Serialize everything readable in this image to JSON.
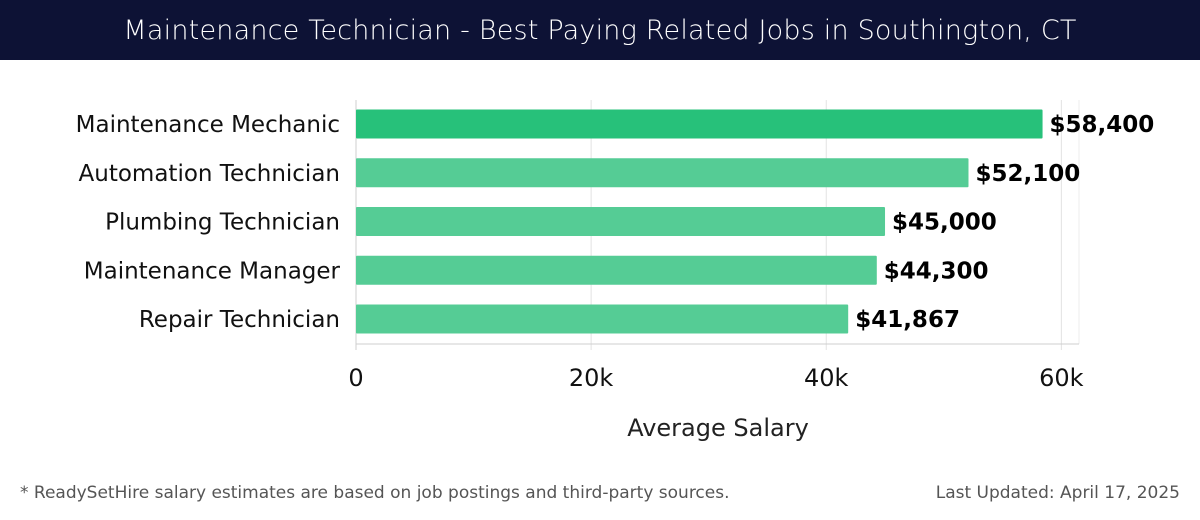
{
  "header": {
    "title": "Maintenance Technician - Best Paying Related Jobs in Southington, CT"
  },
  "footer": {
    "note": "* ReadySetHire salary estimates are based on job postings and third-party sources.",
    "updated": "Last Updated: April 17, 2025"
  },
  "colors": {
    "header_bg": "#0d1235",
    "bar_top": "#27c17a",
    "bar_other": "#55cc95",
    "grid": "#e2e2e2"
  },
  "chart_data": {
    "type": "bar",
    "orientation": "horizontal",
    "categories": [
      "Maintenance Mechanic",
      "Automation Technician",
      "Plumbing Technician",
      "Maintenance Manager",
      "Repair Technician"
    ],
    "values": [
      58400,
      52100,
      45000,
      44300,
      41867
    ],
    "value_labels": [
      "$58,400",
      "$52,100",
      "$45,000",
      "$44,300",
      "$41,867"
    ],
    "xlabel": "Average Salary",
    "ylabel": "",
    "xlim": [
      0,
      61500
    ],
    "x_ticks": [
      0,
      20000,
      40000,
      60000
    ],
    "x_tick_labels": [
      "0",
      "20k",
      "40k",
      "60k"
    ],
    "grid": true,
    "legend": "none"
  }
}
